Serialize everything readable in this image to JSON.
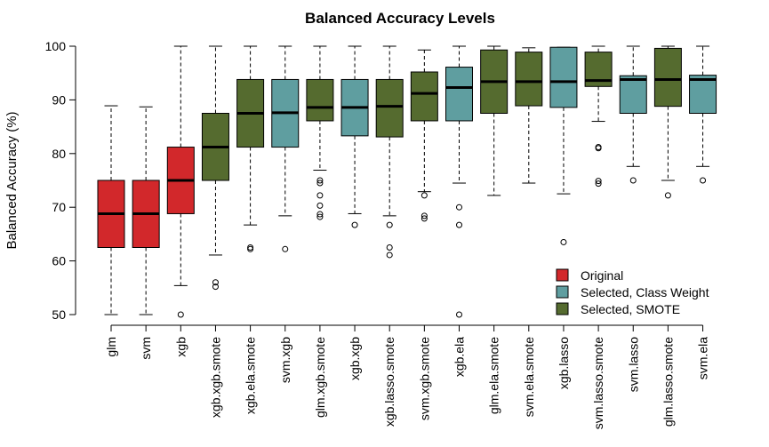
{
  "chart_data": {
    "type": "boxplot",
    "title": "Balanced Accuracy Levels",
    "xlabel": "",
    "ylabel": "Balanced Accuracy (%)",
    "ylim": [
      50,
      100
    ],
    "yticks": [
      50,
      60,
      70,
      80,
      90,
      100
    ],
    "grid": false,
    "legend_position": "bottom-right",
    "colors": {
      "Original": "#d2282b",
      "Selected, Class Weight": "#5f9ea0",
      "Selected, SMOTE": "#556b2f"
    },
    "legend": [
      "Original",
      "Selected, Class Weight",
      "Selected, SMOTE"
    ],
    "boxes": [
      {
        "name": "glm",
        "group": "Original",
        "min": 50,
        "q1": 62.5,
        "median": 68.8,
        "q3": 75,
        "max": 88.9,
        "outliers": []
      },
      {
        "name": "svm",
        "group": "Original",
        "min": 50,
        "q1": 62.5,
        "median": 68.8,
        "q3": 75,
        "max": 88.7,
        "outliers": []
      },
      {
        "name": "xgb",
        "group": "Original",
        "min": 55.4,
        "q1": 68.8,
        "median": 75,
        "q3": 81.2,
        "max": 100,
        "outliers": [
          50
        ]
      },
      {
        "name": "xgb.xgb.smote",
        "group": "Selected, SMOTE",
        "min": 61.1,
        "q1": 75,
        "median": 81.2,
        "q3": 87.5,
        "max": 100,
        "outliers": [
          56,
          55.2
        ]
      },
      {
        "name": "xgb.ela.smote",
        "group": "Selected, SMOTE",
        "min": 66.7,
        "q1": 81.2,
        "median": 87.5,
        "q3": 93.8,
        "max": 100,
        "outliers": [
          62.5,
          62.2
        ]
      },
      {
        "name": "svm.xgb",
        "group": "Selected, Class Weight",
        "min": 68.4,
        "q1": 81.2,
        "median": 87.6,
        "q3": 93.8,
        "max": 100,
        "outliers": [
          62.2
        ]
      },
      {
        "name": "glm.xgb.smote",
        "group": "Selected, SMOTE",
        "min": 76.9,
        "q1": 86.1,
        "median": 88.6,
        "q3": 93.8,
        "max": 100,
        "outliers": [
          75,
          74.5,
          72.2,
          70.3,
          68.7,
          68.2
        ]
      },
      {
        "name": "xgb.xgb",
        "group": "Selected, Class Weight",
        "min": 68.8,
        "q1": 83.3,
        "median": 88.6,
        "q3": 93.8,
        "max": 100,
        "outliers": [
          66.7
        ]
      },
      {
        "name": "xgb.lasso.smote",
        "group": "Selected, SMOTE",
        "min": 68.4,
        "q1": 83.1,
        "median": 88.8,
        "q3": 93.8,
        "max": 100,
        "outliers": [
          66.7,
          62.5,
          61.1
        ]
      },
      {
        "name": "svm.xgb.smote",
        "group": "Selected, SMOTE",
        "min": 72.9,
        "q1": 86.1,
        "median": 91.2,
        "q3": 95.2,
        "max": 99.3,
        "outliers": [
          72.2,
          68.4,
          67.9
        ]
      },
      {
        "name": "xgb.ela",
        "group": "Selected, Class Weight",
        "min": 74.5,
        "q1": 86.1,
        "median": 92.3,
        "q3": 96.1,
        "max": 100,
        "outliers": [
          70,
          66.7,
          50
        ]
      },
      {
        "name": "glm.ela.smote",
        "group": "Selected, SMOTE",
        "min": 72.2,
        "q1": 87.5,
        "median": 93.4,
        "q3": 99.3,
        "max": 100,
        "outliers": []
      },
      {
        "name": "svm.ela.smote",
        "group": "Selected, SMOTE",
        "min": 74.5,
        "q1": 88.9,
        "median": 93.4,
        "q3": 98.9,
        "max": 99.7,
        "outliers": []
      },
      {
        "name": "xgb.lasso",
        "group": "Selected, Class Weight",
        "min": 72.5,
        "q1": 88.6,
        "median": 93.4,
        "q3": 99.8,
        "max": 99.8,
        "outliers": [
          63.5
        ]
      },
      {
        "name": "svm.lasso.smote",
        "group": "Selected, SMOTE",
        "min": 86,
        "q1": 92.5,
        "median": 93.6,
        "q3": 98.9,
        "max": 100,
        "outliers": [
          81.2,
          81,
          74.9,
          74.4
        ]
      },
      {
        "name": "svm.lasso",
        "group": "Selected, Class Weight",
        "min": 77.6,
        "q1": 87.5,
        "median": 93.8,
        "q3": 94.5,
        "max": 100,
        "outliers": [
          75
        ]
      },
      {
        "name": "glm.lasso.smote",
        "group": "Selected, SMOTE",
        "min": 75,
        "q1": 88.8,
        "median": 93.8,
        "q3": 99.6,
        "max": 100,
        "outliers": [
          72.2
        ]
      },
      {
        "name": "svm.ela",
        "group": "Selected, Class Weight",
        "min": 77.6,
        "q1": 87.5,
        "median": 93.8,
        "q3": 94.6,
        "max": 100,
        "outliers": [
          75
        ]
      }
    ]
  }
}
